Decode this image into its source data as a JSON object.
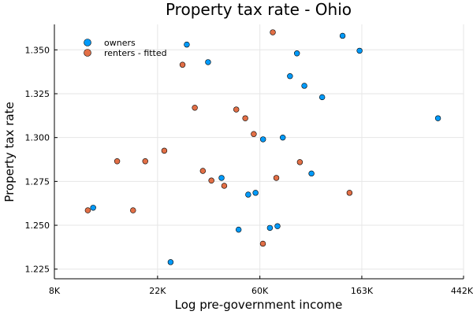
{
  "chart_data": {
    "type": "scatter",
    "title": "Property tax rate - Ohio",
    "xlabel": "Log pre-government income",
    "ylabel": "Property tax rate",
    "x_scale": "log",
    "xlim": [
      8000,
      442000
    ],
    "ylim": [
      1.2195,
      1.3645
    ],
    "x_ticks": [
      {
        "value": 8000,
        "label": "8K"
      },
      {
        "value": 22000,
        "label": "22K"
      },
      {
        "value": 60000,
        "label": "60K"
      },
      {
        "value": 163000,
        "label": "163K"
      },
      {
        "value": 442000,
        "label": "442K"
      }
    ],
    "y_ticks": [
      {
        "value": 1.225,
        "label": "1.225"
      },
      {
        "value": 1.25,
        "label": "1.250"
      },
      {
        "value": 1.275,
        "label": "1.275"
      },
      {
        "value": 1.3,
        "label": "1.300"
      },
      {
        "value": 1.325,
        "label": "1.325"
      },
      {
        "value": 1.35,
        "label": "1.350"
      }
    ],
    "grid": true,
    "legend_position": "top-left",
    "series": [
      {
        "name": "owners",
        "color": "#009af9",
        "points": [
          {
            "x": 11700,
            "y": 1.26
          },
          {
            "x": 25000,
            "y": 1.229
          },
          {
            "x": 29300,
            "y": 1.353
          },
          {
            "x": 36100,
            "y": 1.343
          },
          {
            "x": 41200,
            "y": 1.277
          },
          {
            "x": 48700,
            "y": 1.2475
          },
          {
            "x": 53500,
            "y": 1.2675
          },
          {
            "x": 57500,
            "y": 1.2685
          },
          {
            "x": 61900,
            "y": 1.299
          },
          {
            "x": 66200,
            "y": 1.2485
          },
          {
            "x": 71300,
            "y": 1.2495
          },
          {
            "x": 75100,
            "y": 1.3
          },
          {
            "x": 80600,
            "y": 1.335
          },
          {
            "x": 86300,
            "y": 1.348
          },
          {
            "x": 92800,
            "y": 1.3295
          },
          {
            "x": 99500,
            "y": 1.2795
          },
          {
            "x": 110500,
            "y": 1.323
          },
          {
            "x": 135000,
            "y": 1.358
          },
          {
            "x": 159500,
            "y": 1.3495
          },
          {
            "x": 344000,
            "y": 1.311
          }
        ]
      },
      {
        "name": "renters - fitted",
        "color": "#e26f46",
        "points": [
          {
            "x": 11100,
            "y": 1.2585
          },
          {
            "x": 14800,
            "y": 1.2865
          },
          {
            "x": 17300,
            "y": 1.2585
          },
          {
            "x": 19500,
            "y": 1.2865
          },
          {
            "x": 23500,
            "y": 1.2925
          },
          {
            "x": 28100,
            "y": 1.3415
          },
          {
            "x": 31700,
            "y": 1.317
          },
          {
            "x": 34300,
            "y": 1.281
          },
          {
            "x": 37300,
            "y": 1.2755
          },
          {
            "x": 42300,
            "y": 1.2725
          },
          {
            "x": 47600,
            "y": 1.316
          },
          {
            "x": 52000,
            "y": 1.311
          },
          {
            "x": 56500,
            "y": 1.302
          },
          {
            "x": 61800,
            "y": 1.2395
          },
          {
            "x": 68100,
            "y": 1.36
          },
          {
            "x": 70500,
            "y": 1.277
          },
          {
            "x": 88800,
            "y": 1.286
          },
          {
            "x": 144500,
            "y": 1.2685
          }
        ]
      }
    ]
  }
}
